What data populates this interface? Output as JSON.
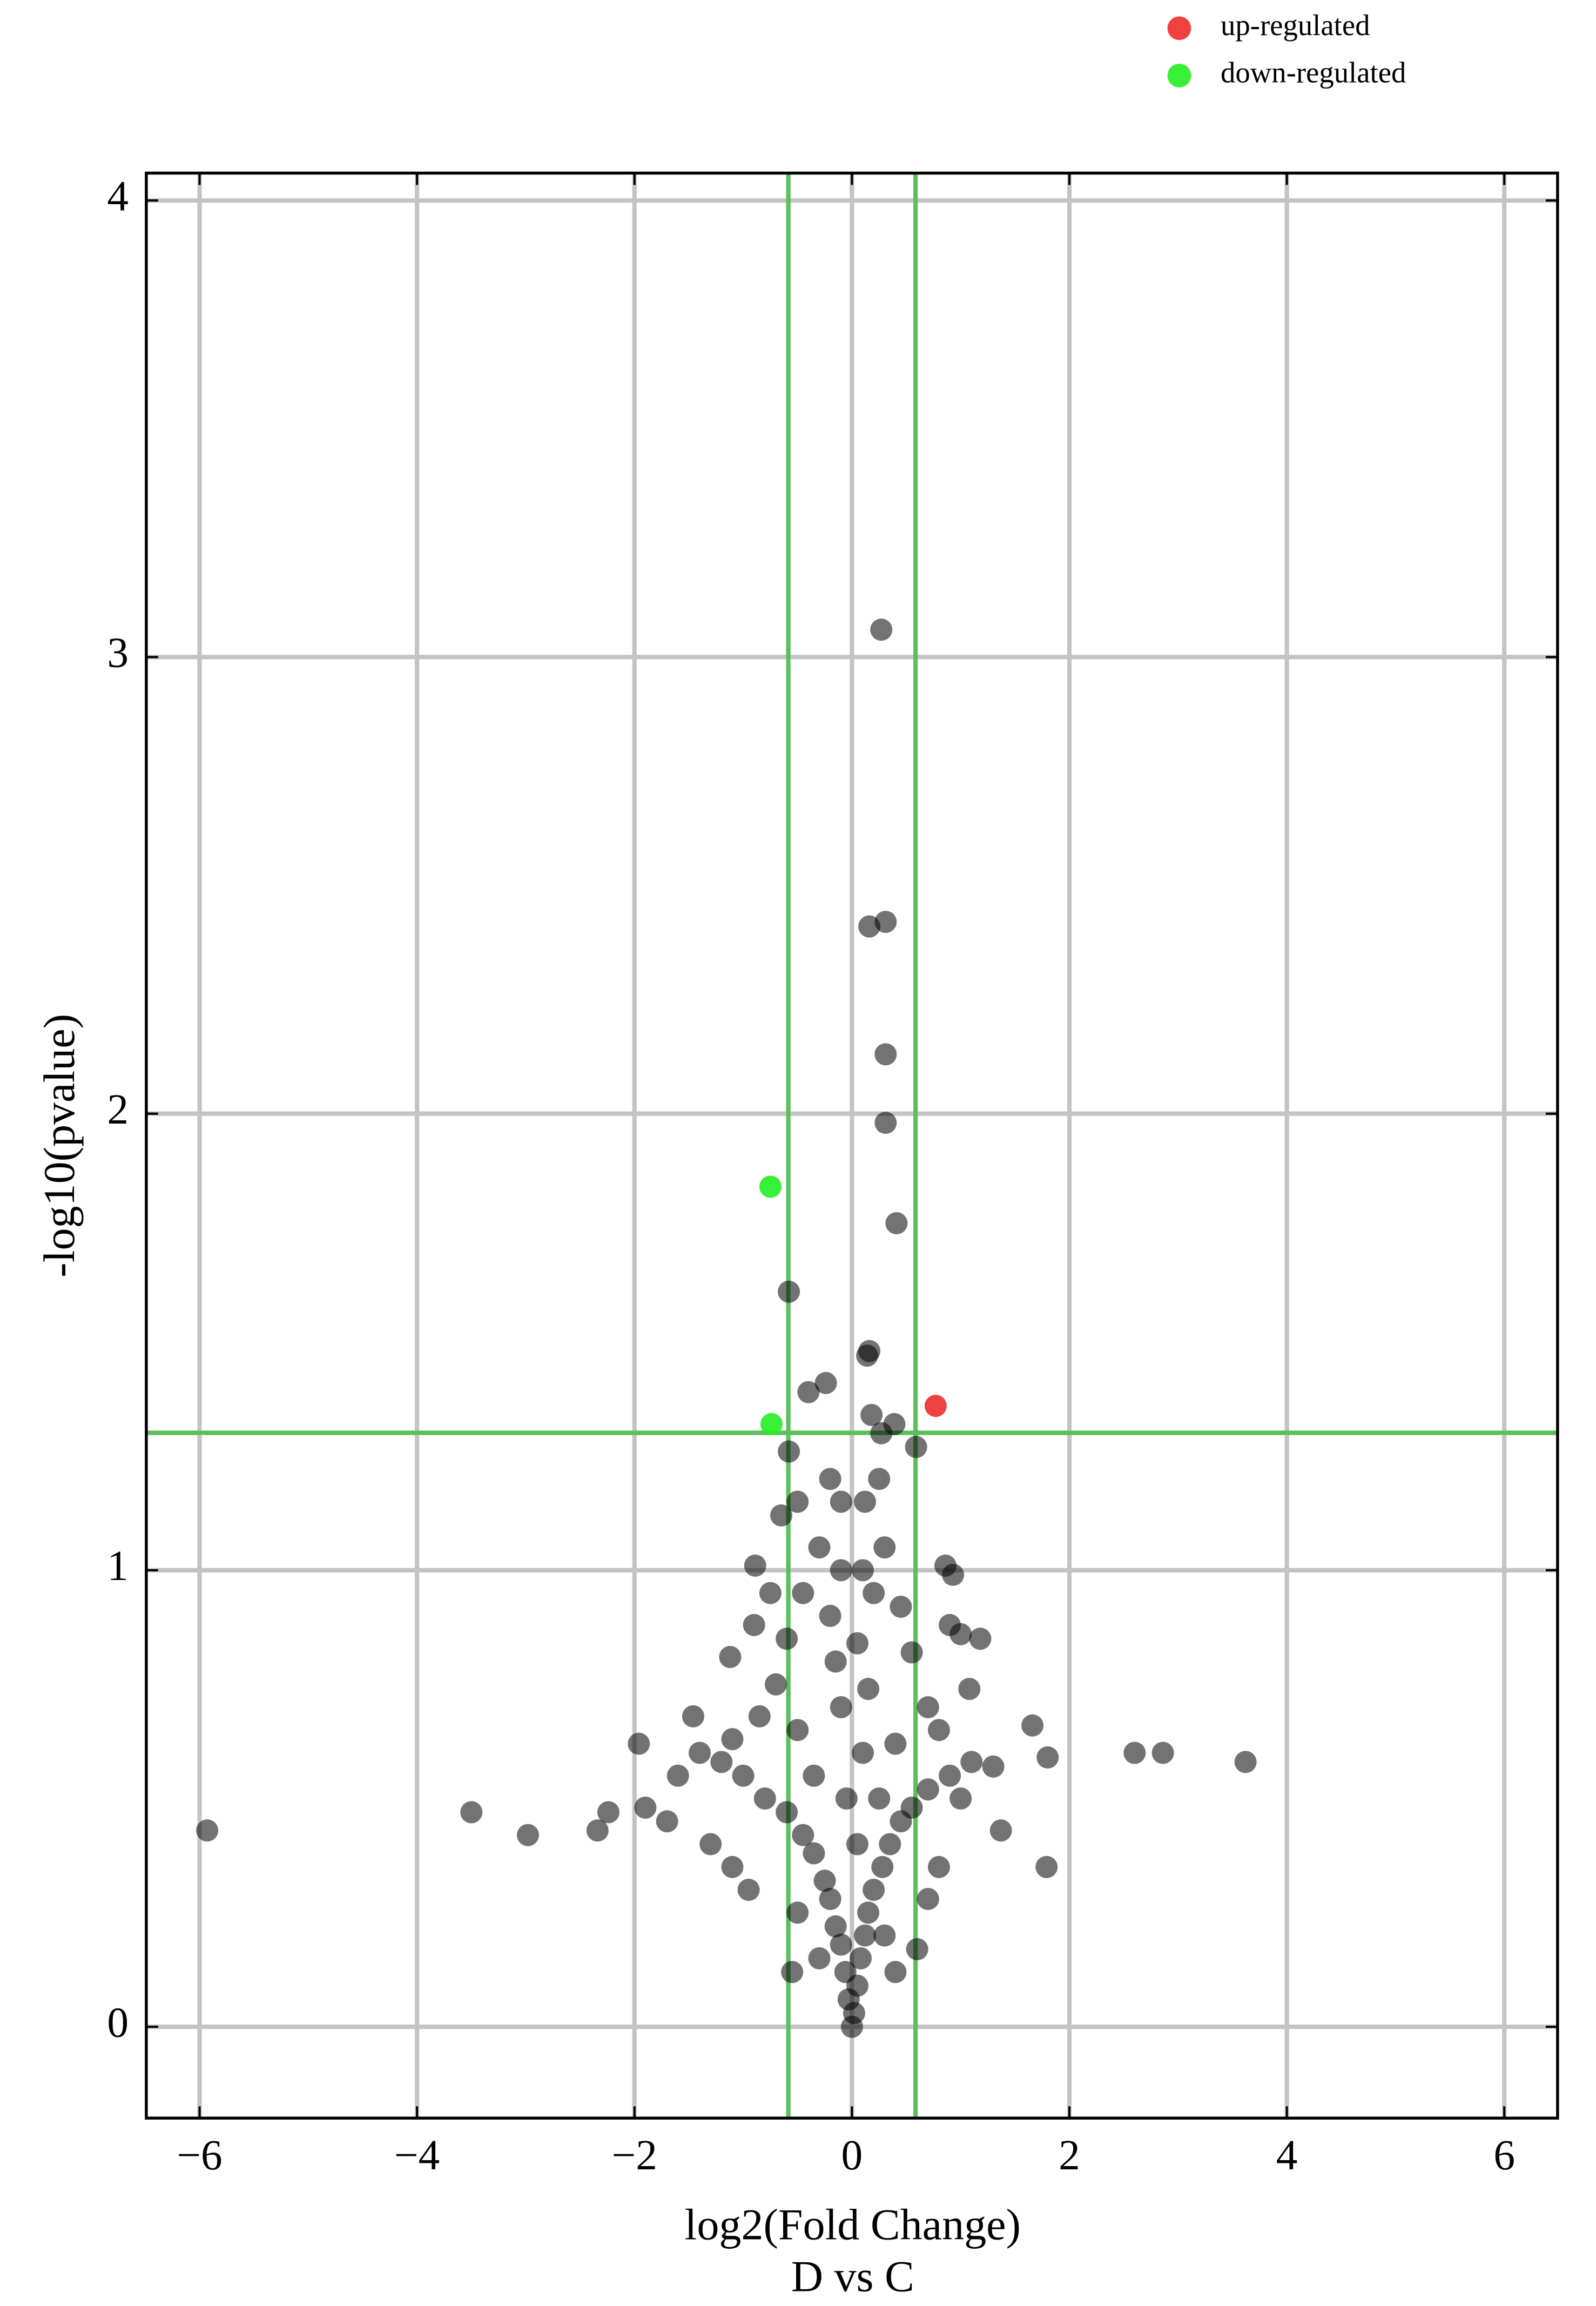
{
  "chart_data": {
    "type": "scatter",
    "xlabel": "log2(Fold Change)",
    "subtitle": "D vs C",
    "ylabel": "-log10(pvalue)",
    "xlim": [
      -6.49,
      6.49
    ],
    "ylim": [
      -0.2,
      4.06
    ],
    "xticks": [
      {
        "value": -6,
        "label": "−6"
      },
      {
        "value": -4,
        "label": "−4"
      },
      {
        "value": -2,
        "label": "−2"
      },
      0,
      2,
      4,
      6
    ],
    "yticks": [
      0,
      1,
      2,
      3,
      4
    ],
    "grid": true,
    "legend": "top-right",
    "thresholds": {
      "x": [
        -0.585,
        0.585
      ],
      "y": 1.301,
      "color": "#5cbf5c"
    },
    "series": [
      {
        "color": "#000000",
        "x": [
          0.27,
          0.16,
          0.31,
          0.31,
          0.31,
          0.41,
          -0.58,
          0.16,
          0.14,
          -0.24,
          -0.4,
          0.18,
          0.39,
          0.27,
          0.59,
          -0.58,
          -5.93,
          -3.5,
          -2.98,
          -2.34,
          -2.24,
          -1.96,
          2.6,
          2.86,
          3.62,
          1.79,
          1.8,
          1.66,
          1.18,
          1.0,
          0.93,
          0.86,
          1.08,
          1.37,
          -1.9,
          -1.46,
          -1.12,
          -0.89,
          0,
          0.02,
          -0.03,
          0.05,
          -0.06,
          0.08,
          -0.1,
          0.12,
          -0.15,
          0.15,
          -0.2,
          0.2,
          -0.25,
          0.28,
          -0.35,
          0.35,
          -0.45,
          0.45,
          -0.6,
          0.55,
          -0.8,
          0.7,
          -1.0,
          0.9,
          -1.2,
          1.1,
          -1.4,
          1.3,
          -1.7,
          -1.6,
          -1.1,
          0.05,
          -0.05,
          0.1,
          -0.1,
          0.15,
          -0.15,
          0.05,
          -0.2,
          0.2,
          -0.1,
          0.1,
          -0.1,
          0.12,
          -0.3,
          0.3,
          -0.45,
          0.45,
          -0.6,
          0.55,
          -0.7,
          0.7,
          -0.85,
          0.8,
          -0.5,
          0.4,
          -0.3,
          0.3,
          -0.5,
          0.6,
          -0.55,
          0.4,
          -0.2,
          0.25,
          -0.5,
          -0.65,
          -0.75,
          -0.9,
          0.9,
          -0.35,
          0.25,
          -1.3,
          1.0,
          -0.95,
          0.7,
          -1.1,
          0.8
        ],
        "y": [
          3.06,
          2.41,
          2.42,
          2.13,
          1.98,
          1.76,
          1.61,
          1.48,
          1.47,
          1.41,
          1.39,
          1.34,
          1.32,
          1.3,
          1.27,
          1.26,
          0.43,
          0.47,
          0.42,
          0.43,
          0.47,
          0.62,
          0.6,
          0.6,
          0.58,
          0.35,
          0.59,
          0.66,
          0.85,
          0.86,
          0.99,
          1.01,
          0.74,
          0.43,
          0.48,
          0.68,
          0.81,
          1.01,
          0,
          0.03,
          0.06,
          0.09,
          0.12,
          0.15,
          0.18,
          0.2,
          0.22,
          0.25,
          0.28,
          0.3,
          0.32,
          0.35,
          0.38,
          0.4,
          0.42,
          0.45,
          0.47,
          0.48,
          0.5,
          0.52,
          0.55,
          0.55,
          0.58,
          0.58,
          0.6,
          0.57,
          0.45,
          0.55,
          0.63,
          0.4,
          0.5,
          0.6,
          0.7,
          0.74,
          0.8,
          0.84,
          0.9,
          0.95,
          1.0,
          1.0,
          1.15,
          1.15,
          1.05,
          1.05,
          0.95,
          0.92,
          0.85,
          0.82,
          0.75,
          0.7,
          0.68,
          0.65,
          0.65,
          0.62,
          0.15,
          0.2,
          0.25,
          0.17,
          0.12,
          0.12,
          1.2,
          1.2,
          1.15,
          1.12,
          0.95,
          0.88,
          0.88,
          0.55,
          0.5,
          0.4,
          0.5,
          0.3,
          0.28,
          0.35,
          0.35
        ]
      },
      {
        "name": "up-regulated",
        "color": "#ee2c2c",
        "x": [
          0.77
        ],
        "y": [
          1.36
        ]
      },
      {
        "name": "down-regulated",
        "color": "#22ee22",
        "x": [
          -0.75,
          -0.74
        ],
        "y": [
          1.84,
          1.32
        ]
      }
    ]
  }
}
